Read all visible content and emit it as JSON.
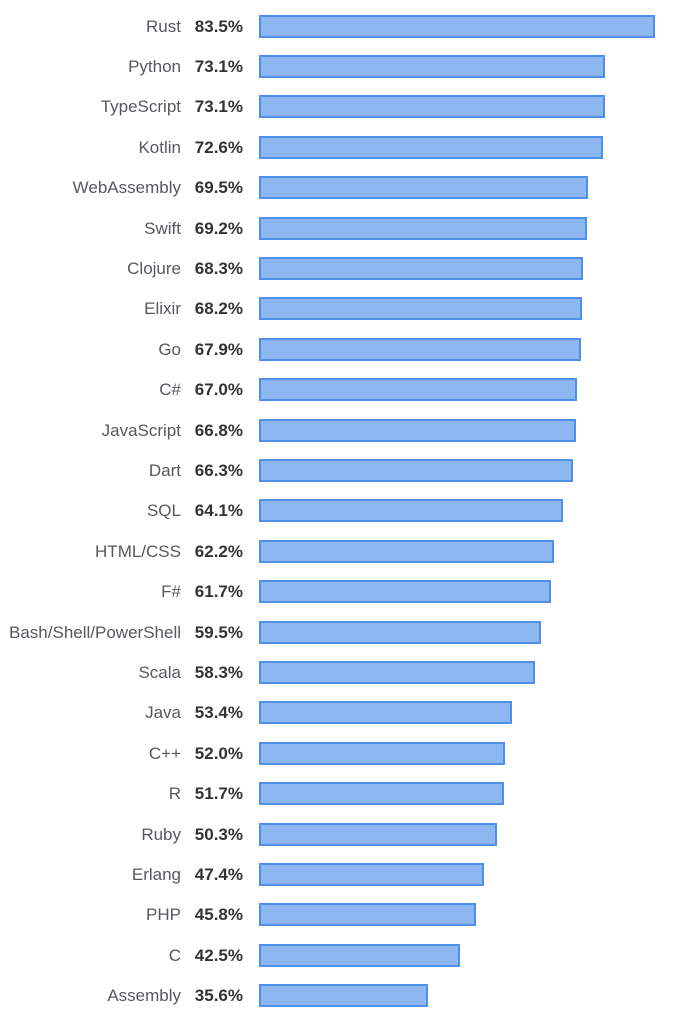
{
  "chart_data": {
    "type": "bar",
    "orientation": "horizontal",
    "categories": [
      "Rust",
      "Python",
      "TypeScript",
      "Kotlin",
      "WebAssembly",
      "Swift",
      "Clojure",
      "Elixir",
      "Go",
      "C#",
      "JavaScript",
      "Dart",
      "SQL",
      "HTML/CSS",
      "F#",
      "Bash/Shell/PowerShell",
      "Scala",
      "Java",
      "C++",
      "R",
      "Ruby",
      "Erlang",
      "PHP",
      "C",
      "Assembly"
    ],
    "values": [
      83.5,
      73.1,
      73.1,
      72.6,
      69.5,
      69.2,
      68.3,
      68.2,
      67.9,
      67.0,
      66.8,
      66.3,
      64.1,
      62.2,
      61.7,
      59.5,
      58.3,
      53.4,
      52.0,
      51.7,
      50.3,
      47.4,
      45.8,
      42.5,
      35.6
    ],
    "value_labels": [
      "83.5%",
      "73.1%",
      "73.1%",
      "72.6%",
      "69.5%",
      "69.2%",
      "68.3%",
      "68.2%",
      "67.9%",
      "67.0%",
      "66.8%",
      "66.3%",
      "64.1%",
      "62.2%",
      "61.7%",
      "59.5%",
      "58.3%",
      "53.4%",
      "52.0%",
      "51.7%",
      "50.3%",
      "47.4%",
      "45.8%",
      "42.5%",
      "35.6%"
    ],
    "xlim": [
      0,
      100
    ],
    "grid": false,
    "legend": "none",
    "axes_visible": false,
    "colors": {
      "bar_fill": "#8CB7F0",
      "bar_border": "#4E90E8",
      "category_label": "#55585C",
      "value_label": "#333333",
      "background": "#FFFFFF"
    }
  }
}
